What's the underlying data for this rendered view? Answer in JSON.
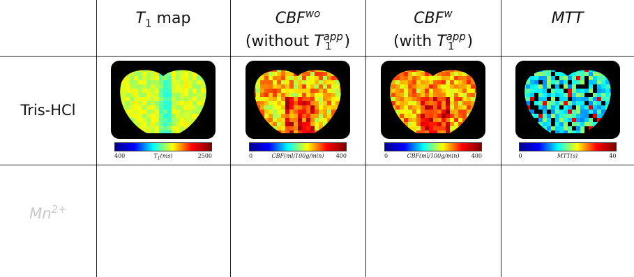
{
  "header": {
    "t1": {
      "symbol": "T",
      "sub": "1",
      "text": "map"
    },
    "cbf_wo": {
      "symbol": "CBF",
      "sup": "wo",
      "note_open": "(without",
      "note_symbol": "T",
      "note_sub": "1",
      "note_sup": "app",
      "note_close": ")"
    },
    "cbf_w": {
      "symbol": "CBF",
      "sup": "w",
      "note_open": "(with",
      "note_symbol": "T",
      "note_sub": "1",
      "note_sup": "app",
      "note_close": ")"
    },
    "mtt": {
      "symbol": "MTT"
    }
  },
  "rows": [
    {
      "label": "Tris-HCl",
      "colorbars": [
        {
          "min": 400,
          "label_symbol": "T",
          "label_sub": "1",
          "label_unit": "(ms)",
          "max": 2500
        },
        {
          "min": 0,
          "label": "CBF(ml/100g/min)",
          "max": 400
        },
        {
          "min": 0,
          "label": "CBF(ml/100g/min)",
          "max": 400
        },
        {
          "min": 0,
          "label": "MTT(s)",
          "max": 40
        }
      ]
    },
    {
      "label": "Mn",
      "label_sup": "2+"
    }
  ]
}
